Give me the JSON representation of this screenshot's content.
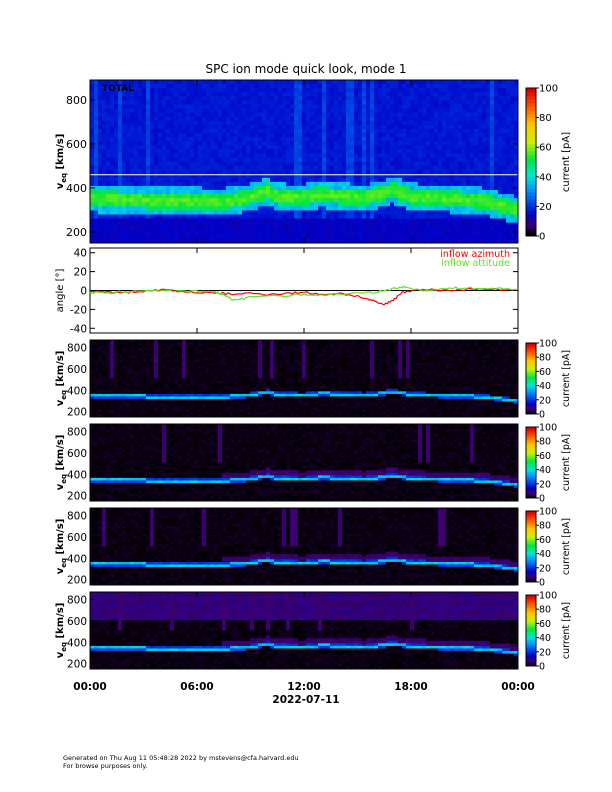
{
  "title": "SPC ion mode quick look, mode 1",
  "date_label": "2022-07-11",
  "footer": {
    "line1": "Generated on Thu Aug 11 05:48:28 2022 by mstevens@cfa.harvard.edu",
    "line2": "For browse purposes only."
  },
  "colors": {
    "azimuth": "#ff0000",
    "attitude": "#66dd22",
    "background": "#ffffff"
  },
  "chart_data": [
    {
      "type": "heatmap",
      "panel": "TOTAL",
      "label": "TOTAL",
      "ylabel": "v",
      "ylabel_sub": "eq",
      "ylabel_unit": "[km/s]",
      "yticks": [
        200,
        400,
        600,
        800
      ],
      "ylim": [
        150,
        890
      ],
      "xlim_hours": [
        0,
        24
      ],
      "colorbar": {
        "label": "current [pA]",
        "ticks": [
          0,
          20,
          40,
          60,
          80,
          100
        ],
        "range": [
          0,
          100
        ],
        "colormap": "rainbow"
      },
      "background_level": 12,
      "white_line_vel": 460,
      "peak_velocity_trace": {
        "hours": [
          0,
          2,
          4,
          6,
          7.5,
          8.5,
          9.5,
          10,
          10.5,
          12,
          13,
          14,
          15.5,
          16.5,
          17,
          18,
          19,
          20,
          21,
          22,
          22.5,
          23,
          24
        ],
        "velocity": [
          350,
          345,
          340,
          340,
          338,
          348,
          370,
          385,
          360,
          355,
          370,
          360,
          355,
          375,
          390,
          360,
          355,
          350,
          345,
          340,
          330,
          320,
          300
        ]
      }
    },
    {
      "type": "line",
      "panel": "angle",
      "ylabel": "angle [°]",
      "yticks": [
        -40,
        -20,
        0,
        20,
        40
      ],
      "ylim": [
        -45,
        45
      ],
      "xlim_hours": [
        0,
        24
      ],
      "legend": [
        "inflow azimuth",
        "inflow attitude"
      ],
      "legend_position": "top-right",
      "series": [
        {
          "name": "inflow azimuth",
          "color": "#ff0000",
          "x": [
            0,
            1,
            2,
            3,
            4,
            5,
            6,
            7,
            7.5,
            8,
            9,
            10,
            11,
            12,
            13,
            14,
            15,
            15.5,
            16,
            16.5,
            17,
            17.5,
            18,
            19,
            20,
            21,
            22,
            23,
            24
          ],
          "y": [
            -1,
            -2,
            -2,
            -1,
            1,
            -1,
            -2,
            -3,
            -3,
            -4,
            -3,
            -4,
            -3,
            -2,
            -4,
            -3,
            -6,
            -9,
            -12,
            -15,
            -10,
            -2,
            0,
            1,
            0,
            1,
            2,
            1,
            0
          ]
        },
        {
          "name": "inflow attitude",
          "color": "#66dd22",
          "x": [
            0,
            1,
            2,
            3,
            4,
            5,
            6,
            7,
            7.5,
            8,
            8.5,
            9,
            10,
            11,
            12,
            13,
            14,
            15,
            16,
            16.5,
            17,
            17.5,
            18,
            19,
            20,
            21,
            22,
            23,
            24
          ],
          "y": [
            -2,
            -3,
            -1,
            0,
            0,
            -1,
            -1,
            -2,
            -4,
            -10,
            -9,
            -7,
            -5,
            -6,
            -4,
            -5,
            -4,
            -3,
            -2,
            0,
            2,
            4,
            2,
            0,
            2,
            3,
            2,
            2,
            1
          ]
        }
      ]
    },
    {
      "type": "heatmap",
      "panel": "sensor-1",
      "ylabel": "v",
      "ylabel_sub": "eq",
      "ylabel_unit": "[km/s]",
      "yticks": [
        200,
        400,
        600,
        800
      ],
      "ylim": [
        150,
        870
      ],
      "colorbar": {
        "label": "current [pA]",
        "ticks": [
          0,
          20,
          40,
          60,
          80,
          100
        ],
        "range": [
          0,
          100
        ],
        "colormap": "rainbow"
      }
    },
    {
      "type": "heatmap",
      "panel": "sensor-2",
      "ylabel": "v",
      "ylabel_sub": "eq",
      "ylabel_unit": "[km/s]",
      "yticks": [
        200,
        400,
        600,
        800
      ],
      "ylim": [
        150,
        870
      ],
      "colorbar": {
        "label": "current [pA]",
        "ticks": [
          0,
          20,
          40,
          60,
          80,
          100
        ],
        "range": [
          0,
          100
        ],
        "colormap": "rainbow"
      }
    },
    {
      "type": "heatmap",
      "panel": "sensor-3",
      "ylabel": "v",
      "ylabel_sub": "eq",
      "ylabel_unit": "[km/s]",
      "yticks": [
        200,
        400,
        600,
        800
      ],
      "ylim": [
        150,
        870
      ],
      "colorbar": {
        "label": "current [pA]",
        "ticks": [
          0,
          20,
          40,
          60,
          80,
          100
        ],
        "range": [
          0,
          100
        ],
        "colormap": "rainbow"
      }
    },
    {
      "type": "heatmap",
      "panel": "sensor-4",
      "ylabel": "v",
      "ylabel_sub": "eq",
      "ylabel_unit": "[km/s]",
      "yticks": [
        200,
        400,
        600,
        800
      ],
      "ylim": [
        150,
        870
      ],
      "colorbar": {
        "label": "current [pA]",
        "ticks": [
          0,
          20,
          40,
          60,
          80,
          100
        ],
        "range": [
          0,
          100
        ],
        "colormap": "rainbow"
      }
    }
  ],
  "x_axis": {
    "tick_labels": [
      "00:00",
      "06:00",
      "12:00",
      "18:00",
      "00:00"
    ],
    "tick_hours": [
      0,
      6,
      12,
      18,
      24
    ]
  }
}
